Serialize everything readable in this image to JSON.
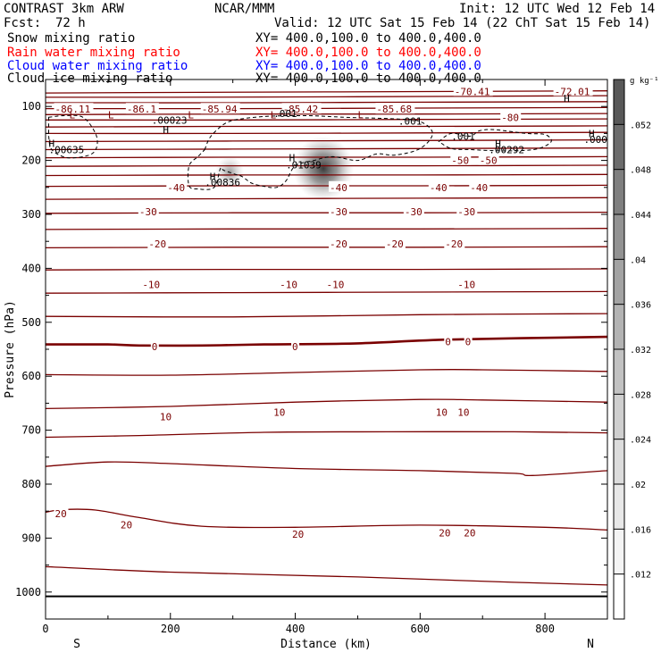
{
  "header": {
    "title": "CONTRAST  3km ARW",
    "center": "NCAR/MMM",
    "init": "Init: 12 UTC Wed 12 Feb 14",
    "fcst_label": "Fcst:",
    "fcst_value": "72 h",
    "valid": "Valid: 12 UTC Sat 15 Feb 14 (22 ChT Sat 15 Feb 14)"
  },
  "legend": [
    {
      "name": "Snow mixing ratio",
      "xy": "XY= 400.0,100.0 to 400.0,400.0",
      "color": "#000000"
    },
    {
      "name": "Rain water mixing ratio",
      "xy": "XY= 400.0,100.0 to 400.0,400.0",
      "color": "#ff0000"
    },
    {
      "name": "Cloud water mixing ratio",
      "xy": "XY= 400.0,100.0 to 400.0,400.0",
      "color": "#0000ff"
    },
    {
      "name": "Cloud ice mixing ratio",
      "xy": "XY= 400.0,100.0 to 400.0,400.0",
      "color": "#000000"
    }
  ],
  "chart_data": {
    "type": "contour-cross-section",
    "xlabel": "Distance (km)",
    "ylabel": "Pressure (hPa)",
    "xlim": [
      0,
      900
    ],
    "ylim": [
      1050,
      50
    ],
    "x_ticks": [
      0,
      200,
      400,
      600,
      800
    ],
    "y_ticks": [
      100,
      200,
      300,
      400,
      500,
      600,
      700,
      800,
      900,
      1000
    ],
    "end_labels": {
      "left": "S",
      "right": "N"
    },
    "contour_color": "#7a0000",
    "temperature_contours": [
      {
        "level": -70,
        "points": [
          [
            0,
            75
          ],
          [
            200,
            74
          ],
          [
            450,
            73
          ],
          [
            900,
            71
          ]
        ]
      },
      {
        "level": -80,
        "points": [
          [
            0,
            83
          ],
          [
            200,
            83
          ],
          [
            500,
            82
          ],
          [
            900,
            80
          ]
        ]
      },
      {
        "level": -80,
        "points": [
          [
            0,
            93
          ],
          [
            300,
            93
          ],
          [
            600,
            92
          ],
          [
            900,
            91
          ]
        ]
      },
      {
        "level": -80,
        "points": [
          [
            0,
            104
          ],
          [
            300,
            104
          ],
          [
            600,
            103
          ],
          [
            900,
            102
          ]
        ]
      },
      {
        "level": -80,
        "points": [
          [
            0,
            115
          ],
          [
            300,
            114
          ],
          [
            600,
            114
          ],
          [
            900,
            113
          ]
        ]
      },
      {
        "level": -80,
        "points": [
          [
            0,
            125
          ],
          [
            300,
            125
          ],
          [
            600,
            124
          ],
          [
            900,
            123
          ]
        ]
      },
      {
        "level": -70,
        "points": [
          [
            0,
            138
          ],
          [
            300,
            137
          ],
          [
            600,
            137
          ],
          [
            900,
            136
          ]
        ]
      },
      {
        "level": -70,
        "points": [
          [
            0,
            150
          ],
          [
            300,
            150
          ],
          [
            600,
            149
          ],
          [
            900,
            148
          ]
        ]
      },
      {
        "level": -60,
        "points": [
          [
            0,
            165
          ],
          [
            300,
            164
          ],
          [
            600,
            163
          ],
          [
            900,
            162
          ]
        ]
      },
      {
        "level": -60,
        "points": [
          [
            0,
            180
          ],
          [
            300,
            179
          ],
          [
            600,
            178
          ],
          [
            900,
            177
          ]
        ]
      },
      {
        "level": -50,
        "points": [
          [
            0,
            195
          ],
          [
            300,
            194
          ],
          [
            600,
            194
          ],
          [
            900,
            193
          ]
        ]
      },
      {
        "level": -50,
        "points": [
          [
            0,
            211
          ],
          [
            300,
            210
          ],
          [
            600,
            210
          ],
          [
            900,
            209
          ]
        ]
      },
      {
        "level": -40,
        "points": [
          [
            0,
            228
          ],
          [
            300,
            227
          ],
          [
            600,
            227
          ],
          [
            900,
            226
          ]
        ]
      },
      {
        "level": -40,
        "points": [
          [
            0,
            248
          ],
          [
            300,
            247
          ],
          [
            600,
            247
          ],
          [
            900,
            246
          ]
        ]
      },
      {
        "level": -30,
        "points": [
          [
            0,
            272
          ],
          [
            300,
            271
          ],
          [
            600,
            270
          ],
          [
            900,
            269
          ]
        ]
      },
      {
        "level": -30,
        "points": [
          [
            0,
            298
          ],
          [
            300,
            297
          ],
          [
            600,
            297
          ],
          [
            900,
            296
          ]
        ]
      },
      {
        "level": -20,
        "points": [
          [
            0,
            328
          ],
          [
            300,
            327
          ],
          [
            600,
            327
          ],
          [
            900,
            326
          ]
        ]
      },
      {
        "level": -20,
        "points": [
          [
            0,
            362
          ],
          [
            300,
            361
          ],
          [
            600,
            361
          ],
          [
            900,
            360
          ]
        ]
      },
      {
        "level": -10,
        "points": [
          [
            0,
            403
          ],
          [
            300,
            402
          ],
          [
            600,
            402
          ],
          [
            900,
            401
          ]
        ]
      },
      {
        "level": -10,
        "points": [
          [
            0,
            446
          ],
          [
            300,
            445
          ],
          [
            600,
            444
          ],
          [
            900,
            443
          ]
        ]
      },
      {
        "level": 0,
        "points": [
          [
            0,
            489
          ],
          [
            300,
            490
          ],
          [
            600,
            486
          ],
          [
            900,
            484
          ]
        ]
      },
      {
        "level": 0,
        "points": [
          [
            0,
            541
          ],
          [
            100,
            541
          ],
          [
            150,
            543
          ],
          [
            250,
            543
          ],
          [
            350,
            541
          ],
          [
            500,
            539
          ],
          [
            650,
            532
          ],
          [
            900,
            527
          ]
        ]
      },
      {
        "level": 10,
        "points": [
          [
            0,
            597
          ],
          [
            200,
            598
          ],
          [
            400,
            593
          ],
          [
            600,
            588
          ],
          [
            700,
            588
          ],
          [
            900,
            591
          ]
        ]
      },
      {
        "level": 10,
        "points": [
          [
            0,
            660
          ],
          [
            200,
            656
          ],
          [
            400,
            648
          ],
          [
            600,
            643
          ],
          [
            700,
            644
          ],
          [
            900,
            648
          ]
        ]
      },
      {
        "level": 10,
        "points": [
          [
            0,
            713
          ],
          [
            150,
            710
          ],
          [
            350,
            704
          ],
          [
            550,
            703
          ],
          [
            750,
            703
          ],
          [
            900,
            705
          ]
        ]
      },
      {
        "level": 20,
        "points": [
          [
            0,
            767
          ],
          [
            100,
            759
          ],
          [
            200,
            762
          ],
          [
            400,
            771
          ],
          [
            600,
            775
          ],
          [
            750,
            780
          ],
          [
            780,
            784
          ],
          [
            900,
            775
          ]
        ]
      },
      {
        "level": 20,
        "points": [
          [
            0,
            852
          ],
          [
            30,
            847
          ],
          [
            80,
            848
          ],
          [
            150,
            862
          ],
          [
            250,
            878
          ],
          [
            400,
            880
          ],
          [
            600,
            876
          ],
          [
            800,
            880
          ],
          [
            900,
            885
          ]
        ]
      },
      {
        "level": 20,
        "points": [
          [
            0,
            953
          ],
          [
            200,
            963
          ],
          [
            500,
            972
          ],
          [
            750,
            982
          ],
          [
            900,
            987
          ]
        ]
      },
      {
        "level": 30,
        "points": [
          [
            0,
            1008
          ],
          [
            900,
            1008
          ]
        ]
      }
    ],
    "temperature_labels": [
      {
        "x": 15,
        "p": 105,
        "text": "-86.11"
      },
      {
        "x": 130,
        "p": 105,
        "text": "-86.1"
      },
      {
        "x": 250,
        "p": 105,
        "text": "-85.94"
      },
      {
        "x": 380,
        "p": 105,
        "text": "-85.42"
      },
      {
        "x": 530,
        "p": 105,
        "text": "-85.68"
      },
      {
        "x": 655,
        "p": 72,
        "text": "-70.41"
      },
      {
        "x": 815,
        "p": 72,
        "text": "-72.01"
      },
      {
        "x": 730,
        "p": 120,
        "text": "-80"
      },
      {
        "x": 650,
        "p": 200,
        "text": "-50"
      },
      {
        "x": 695,
        "p": 200,
        "text": "-50"
      },
      {
        "x": 195,
        "p": 250,
        "text": "-40"
      },
      {
        "x": 455,
        "p": 250,
        "text": "-40"
      },
      {
        "x": 615,
        "p": 250,
        "text": "-40"
      },
      {
        "x": 680,
        "p": 250,
        "text": "-40"
      },
      {
        "x": 150,
        "p": 295,
        "text": "-30"
      },
      {
        "x": 455,
        "p": 295,
        "text": "-30"
      },
      {
        "x": 575,
        "p": 295,
        "text": "-30"
      },
      {
        "x": 660,
        "p": 295,
        "text": "-30"
      },
      {
        "x": 165,
        "p": 355,
        "text": "-20"
      },
      {
        "x": 455,
        "p": 355,
        "text": "-20"
      },
      {
        "x": 545,
        "p": 355,
        "text": "-20"
      },
      {
        "x": 640,
        "p": 355,
        "text": "-20"
      },
      {
        "x": 155,
        "p": 430,
        "text": "-10"
      },
      {
        "x": 375,
        "p": 430,
        "text": "-10"
      },
      {
        "x": 450,
        "p": 430,
        "text": "-10"
      },
      {
        "x": 660,
        "p": 430,
        "text": "-10"
      },
      {
        "x": 170,
        "p": 545,
        "text": "0"
      },
      {
        "x": 395,
        "p": 545,
        "text": "0"
      },
      {
        "x": 640,
        "p": 536,
        "text": "0"
      },
      {
        "x": 672,
        "p": 536,
        "text": "0"
      },
      {
        "x": 183,
        "p": 675,
        "text": "10"
      },
      {
        "x": 365,
        "p": 667,
        "text": "10"
      },
      {
        "x": 625,
        "p": 667,
        "text": "10"
      },
      {
        "x": 660,
        "p": 667,
        "text": "10"
      },
      {
        "x": 15,
        "p": 855,
        "text": "20"
      },
      {
        "x": 120,
        "p": 875,
        "text": "20"
      },
      {
        "x": 395,
        "p": 893,
        "text": "20"
      },
      {
        "x": 630,
        "p": 890,
        "text": "20"
      },
      {
        "x": 670,
        "p": 890,
        "text": "20"
      }
    ],
    "extrema": [
      {
        "x": 38,
        "p": 115,
        "text": "L"
      },
      {
        "x": 100,
        "p": 115,
        "text": "L"
      },
      {
        "x": 228,
        "p": 115,
        "text": "L"
      },
      {
        "x": 360,
        "p": 115,
        "text": "L"
      },
      {
        "x": 500,
        "p": 115,
        "text": "L"
      },
      {
        "x": 188,
        "p": 143,
        "text": "H"
      },
      {
        "x": 5,
        "p": 168,
        "text": "H"
      },
      {
        "x": 390,
        "p": 195,
        "text": "H"
      },
      {
        "x": 263,
        "p": 230,
        "text": "H"
      },
      {
        "x": 720,
        "p": 168,
        "text": "H"
      },
      {
        "x": 870,
        "p": 150,
        "text": "H"
      },
      {
        "x": 830,
        "p": 85,
        "text": "H"
      }
    ],
    "cloud_ice_labels": [
      {
        "x": 170,
        "p": 125,
        "text": ".00023"
      },
      {
        "x": 365,
        "p": 113,
        "text": ".001"
      },
      {
        "x": 565,
        "p": 127,
        "text": ".001"
      },
      {
        "x": 650,
        "p": 155,
        "text": ".001"
      },
      {
        "x": 5,
        "p": 180,
        "text": ".00635"
      },
      {
        "x": 385,
        "p": 208,
        "text": ".01039"
      },
      {
        "x": 255,
        "p": 240,
        "text": ".00836"
      },
      {
        "x": 710,
        "p": 180,
        "text": ".00292"
      },
      {
        "x": 862,
        "p": 161,
        "text": ".0006"
      }
    ],
    "cloud_ice_contours": [
      {
        "level": 0.001,
        "points": [
          [
            5,
            120
          ],
          [
            30,
            117
          ],
          [
            60,
            120
          ],
          [
            80,
            150
          ],
          [
            82,
            175
          ],
          [
            70,
            190
          ],
          [
            35,
            195
          ],
          [
            10,
            180
          ],
          [
            5,
            155
          ]
        ]
      },
      {
        "level": 0.001,
        "points": [
          [
            255,
            180
          ],
          [
            265,
            155
          ],
          [
            290,
            130
          ],
          [
            320,
            122
          ],
          [
            360,
            118
          ],
          [
            420,
            117
          ],
          [
            480,
            120
          ],
          [
            560,
            123
          ],
          [
            600,
            128
          ],
          [
            620,
            150
          ],
          [
            600,
            178
          ],
          [
            560,
            190
          ],
          [
            530,
            188
          ],
          [
            500,
            200
          ],
          [
            460,
            193
          ],
          [
            430,
            200
          ],
          [
            400,
            210
          ],
          [
            385,
            238
          ],
          [
            370,
            250
          ],
          [
            350,
            248
          ],
          [
            330,
            242
          ],
          [
            315,
            230
          ],
          [
            302,
            225
          ],
          [
            285,
            218
          ],
          [
            280,
            215
          ],
          [
            270,
            250
          ],
          [
            245,
            253
          ],
          [
            230,
            247
          ],
          [
            230,
            210
          ],
          [
            245,
            192
          ],
          [
            255,
            180
          ]
        ]
      },
      {
        "level": 0.001,
        "points": [
          [
            630,
            165
          ],
          [
            650,
            150
          ],
          [
            680,
            155
          ],
          [
            695,
            145
          ],
          [
            720,
            143
          ],
          [
            770,
            150
          ],
          [
            800,
            152
          ],
          [
            810,
            165
          ],
          [
            790,
            178
          ],
          [
            760,
            182
          ],
          [
            720,
            182
          ],
          [
            680,
            180
          ],
          [
            650,
            178
          ],
          [
            630,
            165
          ]
        ]
      }
    ],
    "snow_maxima": [
      {
        "x": 445,
        "p": 215,
        "value": 0.05
      },
      {
        "x": 295,
        "p": 222,
        "value": 0.03
      }
    ],
    "colorbar": {
      "unit": "g kg⁻¹",
      "levels": [
        0.012,
        0.016,
        0.02,
        0.024,
        0.028,
        0.032,
        0.036,
        0.04,
        0.044,
        0.048,
        0.052
      ],
      "labels": [
        ".012",
        ".016",
        ".02",
        ".024",
        ".028",
        ".032",
        ".036",
        ".04",
        ".044",
        ".048",
        ".052"
      ],
      "colors": [
        "#ffffff",
        "#f4f4f4",
        "#e8e8e8",
        "#dcdcdc",
        "#cfcfcf",
        "#c2c2c2",
        "#b3b3b3",
        "#a3a3a3",
        "#929292",
        "#7f7f7f",
        "#6c6c6c",
        "#585858"
      ]
    }
  }
}
